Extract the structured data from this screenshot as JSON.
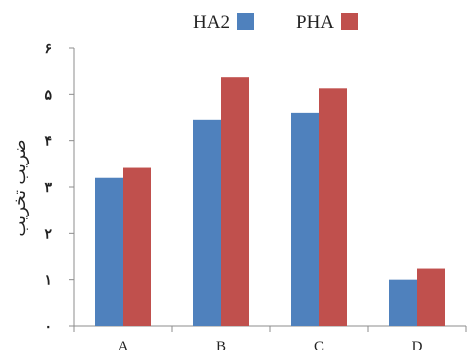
{
  "chart_data": {
    "type": "bar",
    "categories": [
      "A",
      "B",
      "C",
      "D"
    ],
    "series": [
      {
        "name": "HA2",
        "values": [
          3.2,
          4.45,
          4.6,
          1.0
        ],
        "color": "#4F81BD"
      },
      {
        "name": "PHA",
        "values": [
          3.42,
          5.37,
          5.13,
          1.24
        ],
        "color": "#C0504D"
      }
    ],
    "ylim": [
      0,
      6
    ],
    "yticks": [
      0,
      1,
      2,
      3,
      4,
      5,
      6
    ],
    "ytick_labels": [
      "۰",
      "۱",
      "۲",
      "۳",
      "۴",
      "۵",
      "۶"
    ],
    "ylabel": "ضریب تخریب",
    "xlabel": "",
    "title": "",
    "grid": false,
    "legend_position": "top-center"
  }
}
